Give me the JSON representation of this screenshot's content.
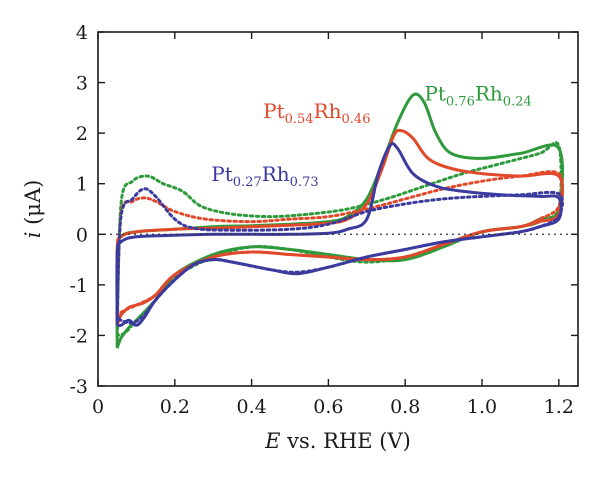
{
  "chart_data": {
    "type": "line",
    "title": "",
    "xlabel_italic": "E",
    "xlabel_rest": " vs. RHE (V)",
    "ylabel_italic": "i",
    "ylabel_rest": " (μA)",
    "xlim": [
      0,
      1.25
    ],
    "ylim": [
      -3,
      4
    ],
    "xticks": [
      0,
      0.2,
      0.4,
      0.6,
      0.8,
      1.0,
      1.2
    ],
    "xtick_labels": [
      "0",
      "0.2",
      "0.4",
      "0.6",
      "0.8",
      "1.0",
      "1.2"
    ],
    "yticks": [
      -3,
      -2,
      -1,
      0,
      1,
      2,
      3,
      4
    ],
    "ytick_labels": [
      "-3",
      "-2",
      "-1",
      "0",
      "1",
      "2",
      "3",
      "4"
    ],
    "zero_line": "dotted",
    "grid": false,
    "series": [
      {
        "label": {
          "main1": "Pt",
          "sub1": "0.76",
          "main2": "Rh",
          "sub2": "0.24"
        },
        "label_pos": [
          0.85,
          2.65
        ],
        "color": "#2e9a3c",
        "solid": [
          [
            0.05,
            -2.25
          ],
          [
            0.05,
            -0.4
          ],
          [
            0.06,
            -0.05
          ],
          [
            0.1,
            0.05
          ],
          [
            0.2,
            0.1
          ],
          [
            0.3,
            0.15
          ],
          [
            0.4,
            0.17
          ],
          [
            0.5,
            0.2
          ],
          [
            0.6,
            0.25
          ],
          [
            0.65,
            0.35
          ],
          [
            0.7,
            0.7
          ],
          [
            0.74,
            1.4
          ],
          [
            0.78,
            2.2
          ],
          [
            0.82,
            2.75
          ],
          [
            0.85,
            2.6
          ],
          [
            0.88,
            2.0
          ],
          [
            0.92,
            1.6
          ],
          [
            1.0,
            1.5
          ],
          [
            1.1,
            1.6
          ],
          [
            1.2,
            1.7
          ],
          [
            1.2,
            0.5
          ],
          [
            1.15,
            0.25
          ],
          [
            1.1,
            0.15
          ],
          [
            1.0,
            0.05
          ],
          [
            0.9,
            -0.25
          ],
          [
            0.8,
            -0.5
          ],
          [
            0.7,
            -0.5
          ],
          [
            0.6,
            -0.4
          ],
          [
            0.5,
            -0.3
          ],
          [
            0.4,
            -0.25
          ],
          [
            0.3,
            -0.4
          ],
          [
            0.2,
            -0.8
          ],
          [
            0.15,
            -1.3
          ],
          [
            0.1,
            -1.7
          ],
          [
            0.08,
            -1.85
          ],
          [
            0.06,
            -2.05
          ],
          [
            0.05,
            -2.25
          ]
        ],
        "dotted": [
          [
            0.05,
            -2.0
          ],
          [
            0.06,
            0.6
          ],
          [
            0.09,
            1.05
          ],
          [
            0.13,
            1.15
          ],
          [
            0.17,
            1.0
          ],
          [
            0.22,
            0.85
          ],
          [
            0.27,
            0.55
          ],
          [
            0.35,
            0.4
          ],
          [
            0.45,
            0.35
          ],
          [
            0.55,
            0.4
          ],
          [
            0.65,
            0.5
          ],
          [
            0.75,
            0.7
          ],
          [
            0.85,
            0.95
          ],
          [
            0.95,
            1.2
          ],
          [
            1.05,
            1.4
          ],
          [
            1.15,
            1.6
          ],
          [
            1.2,
            1.75
          ],
          [
            1.2,
            0.5
          ],
          [
            1.15,
            0.3
          ],
          [
            1.1,
            0.15
          ],
          [
            1.0,
            0.05
          ],
          [
            0.9,
            -0.2
          ],
          [
            0.8,
            -0.45
          ],
          [
            0.7,
            -0.55
          ],
          [
            0.6,
            -0.45
          ],
          [
            0.5,
            -0.3
          ],
          [
            0.4,
            -0.25
          ],
          [
            0.3,
            -0.45
          ],
          [
            0.2,
            -0.85
          ],
          [
            0.15,
            -1.3
          ],
          [
            0.1,
            -1.7
          ],
          [
            0.07,
            -1.95
          ],
          [
            0.05,
            -2.0
          ]
        ]
      },
      {
        "label": {
          "main1": "Pt",
          "sub1": "0.54",
          "main2": "Rh",
          "sub2": "0.46"
        },
        "label_pos": [
          0.43,
          2.3
        ],
        "color": "#e0492a",
        "solid": [
          [
            0.05,
            -1.8
          ],
          [
            0.05,
            -0.3
          ],
          [
            0.06,
            -0.05
          ],
          [
            0.1,
            0.05
          ],
          [
            0.2,
            0.1
          ],
          [
            0.3,
            0.12
          ],
          [
            0.4,
            0.15
          ],
          [
            0.5,
            0.18
          ],
          [
            0.6,
            0.22
          ],
          [
            0.65,
            0.3
          ],
          [
            0.7,
            0.6
          ],
          [
            0.74,
            1.3
          ],
          [
            0.77,
            1.95
          ],
          [
            0.79,
            2.05
          ],
          [
            0.82,
            1.9
          ],
          [
            0.86,
            1.5
          ],
          [
            0.92,
            1.3
          ],
          [
            1.0,
            1.2
          ],
          [
            1.1,
            1.15
          ],
          [
            1.2,
            1.15
          ],
          [
            1.2,
            0.4
          ],
          [
            1.15,
            0.25
          ],
          [
            1.1,
            0.15
          ],
          [
            1.0,
            0.05
          ],
          [
            0.9,
            -0.2
          ],
          [
            0.8,
            -0.45
          ],
          [
            0.7,
            -0.5
          ],
          [
            0.6,
            -0.45
          ],
          [
            0.5,
            -0.4
          ],
          [
            0.4,
            -0.35
          ],
          [
            0.3,
            -0.45
          ],
          [
            0.2,
            -0.8
          ],
          [
            0.15,
            -1.2
          ],
          [
            0.12,
            -1.35
          ],
          [
            0.1,
            -1.4
          ],
          [
            0.08,
            -1.45
          ],
          [
            0.06,
            -1.6
          ],
          [
            0.05,
            -1.8
          ]
        ],
        "dotted": [
          [
            0.05,
            -1.6
          ],
          [
            0.06,
            0.4
          ],
          [
            0.09,
            0.65
          ],
          [
            0.12,
            0.72
          ],
          [
            0.15,
            0.65
          ],
          [
            0.2,
            0.45
          ],
          [
            0.28,
            0.3
          ],
          [
            0.4,
            0.25
          ],
          [
            0.5,
            0.3
          ],
          [
            0.6,
            0.35
          ],
          [
            0.7,
            0.5
          ],
          [
            0.8,
            0.7
          ],
          [
            0.9,
            0.9
          ],
          [
            1.0,
            1.05
          ],
          [
            1.1,
            1.15
          ],
          [
            1.2,
            1.2
          ],
          [
            1.2,
            0.55
          ],
          [
            1.15,
            0.3
          ],
          [
            1.1,
            0.15
          ],
          [
            1.0,
            0.05
          ],
          [
            0.9,
            -0.2
          ],
          [
            0.8,
            -0.45
          ],
          [
            0.7,
            -0.5
          ],
          [
            0.6,
            -0.45
          ],
          [
            0.5,
            -0.4
          ],
          [
            0.4,
            -0.35
          ],
          [
            0.3,
            -0.45
          ],
          [
            0.2,
            -0.8
          ],
          [
            0.15,
            -1.2
          ],
          [
            0.1,
            -1.4
          ],
          [
            0.07,
            -1.5
          ],
          [
            0.05,
            -1.6
          ]
        ]
      },
      {
        "label": {
          "main1": "Pt",
          "sub1": "0.27",
          "main2": "Rh",
          "sub2": "0.73"
        },
        "label_pos": [
          0.295,
          1.05
        ],
        "color": "#3b3a9e",
        "solid": [
          [
            0.05,
            -1.8
          ],
          [
            0.05,
            -0.4
          ],
          [
            0.06,
            -0.15
          ],
          [
            0.1,
            -0.05
          ],
          [
            0.2,
            -0.02
          ],
          [
            0.3,
            0.0
          ],
          [
            0.4,
            0.0
          ],
          [
            0.5,
            0.0
          ],
          [
            0.6,
            0.02
          ],
          [
            0.65,
            0.1
          ],
          [
            0.7,
            0.3
          ],
          [
            0.73,
            1.2
          ],
          [
            0.76,
            1.75
          ],
          [
            0.78,
            1.7
          ],
          [
            0.82,
            1.2
          ],
          [
            0.88,
            0.95
          ],
          [
            0.95,
            0.85
          ],
          [
            1.05,
            0.78
          ],
          [
            1.15,
            0.75
          ],
          [
            1.2,
            0.72
          ],
          [
            1.2,
            0.3
          ],
          [
            1.15,
            0.15
          ],
          [
            1.1,
            0.05
          ],
          [
            1.0,
            -0.05
          ],
          [
            0.9,
            -0.15
          ],
          [
            0.8,
            -0.3
          ],
          [
            0.7,
            -0.45
          ],
          [
            0.6,
            -0.65
          ],
          [
            0.52,
            -0.78
          ],
          [
            0.45,
            -0.7
          ],
          [
            0.35,
            -0.55
          ],
          [
            0.3,
            -0.5
          ],
          [
            0.25,
            -0.6
          ],
          [
            0.2,
            -0.9
          ],
          [
            0.15,
            -1.3
          ],
          [
            0.12,
            -1.65
          ],
          [
            0.1,
            -1.8
          ],
          [
            0.08,
            -1.7
          ],
          [
            0.06,
            -1.8
          ],
          [
            0.05,
            -1.8
          ]
        ],
        "dotted": [
          [
            0.05,
            -1.6
          ],
          [
            0.06,
            0.35
          ],
          [
            0.09,
            0.7
          ],
          [
            0.12,
            0.9
          ],
          [
            0.15,
            0.75
          ],
          [
            0.2,
            0.3
          ],
          [
            0.25,
            0.12
          ],
          [
            0.35,
            0.08
          ],
          [
            0.5,
            0.1
          ],
          [
            0.6,
            0.2
          ],
          [
            0.7,
            0.45
          ],
          [
            0.8,
            0.6
          ],
          [
            0.9,
            0.7
          ],
          [
            1.0,
            0.75
          ],
          [
            1.1,
            0.78
          ],
          [
            1.2,
            0.8
          ],
          [
            1.2,
            0.35
          ],
          [
            1.15,
            0.15
          ],
          [
            1.1,
            0.05
          ],
          [
            1.0,
            -0.05
          ],
          [
            0.9,
            -0.15
          ],
          [
            0.8,
            -0.3
          ],
          [
            0.7,
            -0.45
          ],
          [
            0.6,
            -0.65
          ],
          [
            0.52,
            -0.75
          ],
          [
            0.45,
            -0.7
          ],
          [
            0.35,
            -0.55
          ],
          [
            0.3,
            -0.5
          ],
          [
            0.25,
            -0.6
          ],
          [
            0.2,
            -0.9
          ],
          [
            0.15,
            -1.3
          ],
          [
            0.12,
            -1.6
          ],
          [
            0.09,
            -1.75
          ],
          [
            0.06,
            -1.7
          ],
          [
            0.05,
            -1.6
          ]
        ]
      }
    ]
  }
}
